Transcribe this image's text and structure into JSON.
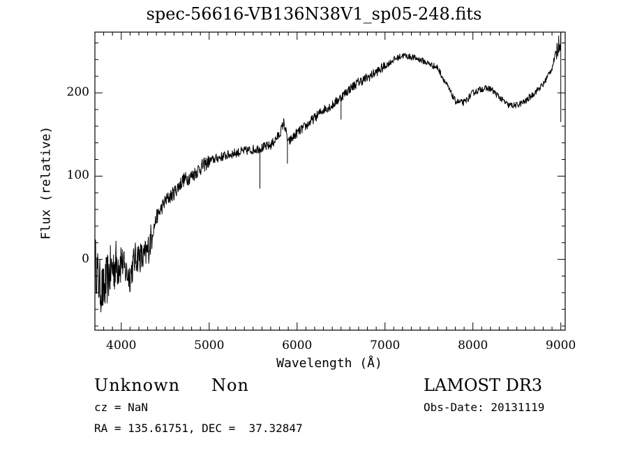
{
  "chart_data": {
    "type": "line",
    "title": "spec-56616-VB136N38V1_sp05-248.fits",
    "xlabel": "Wavelength (Å)",
    "ylabel": "Flux (relative)",
    "xlim": [
      3700,
      9050
    ],
    "ylim": [
      -85,
      273
    ],
    "xticks": [
      4000,
      5000,
      6000,
      7000,
      8000,
      9000
    ],
    "xtick_labels": [
      "4000",
      "5000",
      "6000",
      "7000",
      "8000",
      "9000"
    ],
    "yticks": [
      0,
      100,
      200
    ],
    "ytick_labels": [
      "0",
      "100",
      "200"
    ],
    "grid": false,
    "line_color": "#000000",
    "series": [
      {
        "x": [
          3700,
          3750,
          3800,
          3850,
          3900,
          3950,
          4000,
          4050,
          4100,
          4150,
          4200,
          4250,
          4300,
          4400,
          4500,
          4600,
          4700,
          4800,
          4900,
          5000,
          5100,
          5200,
          5300,
          5400,
          5500,
          5600,
          5700,
          5800,
          5850,
          5900,
          6000,
          6100,
          6200,
          6300,
          6400,
          6500,
          6600,
          6700,
          6800,
          6900,
          7000,
          7100,
          7200,
          7300,
          7400,
          7500,
          7600,
          7700,
          7800,
          7900,
          8000,
          8100,
          8200,
          8300,
          8400,
          8500,
          8600,
          8700,
          8800,
          8900,
          8950,
          9000
        ],
        "y": [
          0,
          -30,
          -40,
          -20,
          -10,
          -5,
          0,
          -15,
          -20,
          0,
          5,
          0,
          10,
          50,
          70,
          80,
          95,
          100,
          110,
          118,
          122,
          125,
          128,
          130,
          132,
          134,
          137,
          150,
          165,
          140,
          152,
          160,
          170,
          180,
          185,
          195,
          205,
          213,
          218,
          225,
          232,
          240,
          245,
          243,
          240,
          235,
          230,
          210,
          190,
          188,
          200,
          205,
          205,
          195,
          185,
          185,
          190,
          200,
          210,
          230,
          250,
          265
        ]
      }
    ],
    "spikes": [
      {
        "x": 5577,
        "y": 85
      },
      {
        "x": 5890,
        "y": 115
      },
      {
        "x": 6500,
        "y": 168
      },
      {
        "x": 9000,
        "y": 165
      }
    ],
    "annotations": {
      "object_class": "Unknown",
      "subclass": "Non",
      "survey": "LAMOST DR3",
      "redshift": "cz = NaN",
      "obs_date": "Obs-Date: 20131119",
      "coords": "RA = 135.61751, DEC =  37.32847"
    }
  }
}
